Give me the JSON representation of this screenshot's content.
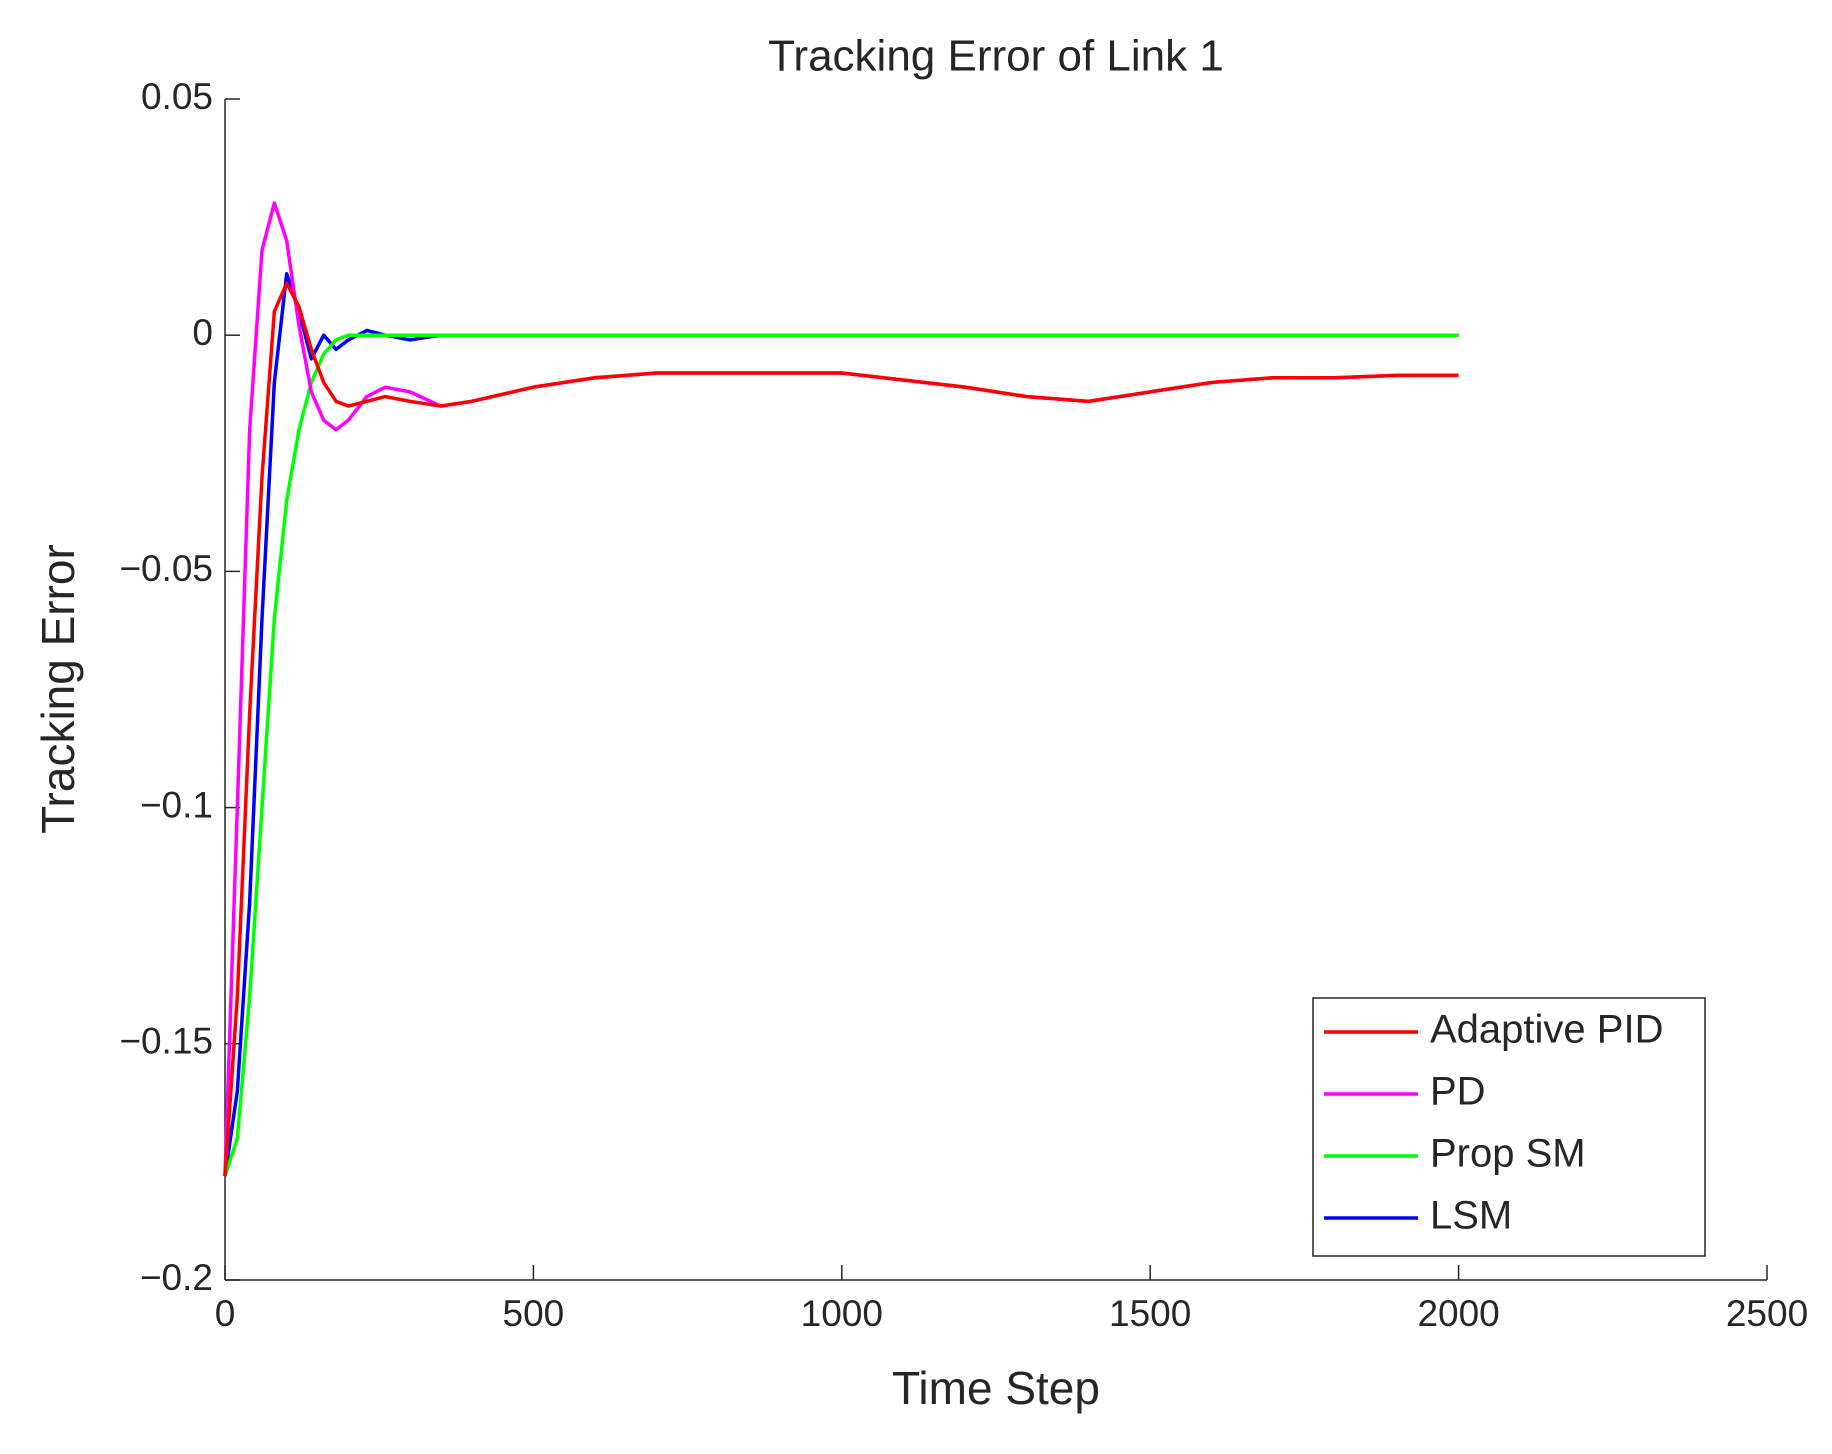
{
  "chart_data": {
    "type": "line",
    "title": "Tracking Error of Link 1",
    "xlabel": "Time Step",
    "ylabel": "Tracking Error",
    "x": [
      0,
      20,
      40,
      60,
      80,
      100,
      120,
      140,
      160,
      180,
      200,
      230,
      260,
      300,
      350,
      400,
      500,
      600,
      700,
      800,
      1000,
      1200,
      1300,
      1400,
      1500,
      1600,
      1700,
      1800,
      1900,
      2000
    ],
    "series": [
      {
        "name": "Adaptive PID",
        "color": "#ff0000",
        "values": [
          -0.178,
          -0.14,
          -0.08,
          -0.03,
          0.005,
          0.011,
          0.006,
          -0.003,
          -0.01,
          -0.014,
          -0.015,
          -0.014,
          -0.013,
          -0.014,
          -0.015,
          -0.014,
          -0.011,
          -0.009,
          -0.008,
          -0.008,
          -0.008,
          -0.011,
          -0.013,
          -0.014,
          -0.012,
          -0.01,
          -0.009,
          -0.009,
          -0.0085,
          -0.0085
        ]
      },
      {
        "name": "PD",
        "color": "#ff00ff",
        "values": [
          -0.178,
          -0.1,
          -0.02,
          0.018,
          0.028,
          0.02,
          0.002,
          -0.012,
          -0.018,
          -0.02,
          -0.018,
          -0.013,
          -0.011,
          -0.012,
          -0.015,
          -0.014,
          -0.011,
          -0.009,
          -0.008,
          -0.008,
          -0.008,
          -0.011,
          -0.013,
          -0.014,
          -0.012,
          -0.01,
          -0.009,
          -0.009,
          -0.0085,
          -0.0085
        ]
      },
      {
        "name": "Prop SM",
        "color": "#00ff00",
        "values": [
          -0.178,
          -0.17,
          -0.14,
          -0.1,
          -0.06,
          -0.035,
          -0.02,
          -0.01,
          -0.004,
          -0.001,
          0,
          0,
          0,
          0,
          0,
          0,
          0,
          0,
          0,
          0,
          0,
          0,
          0,
          0,
          0,
          0,
          0,
          0,
          0,
          0
        ]
      },
      {
        "name": "LSM",
        "color": "#0000ff",
        "values": [
          -0.178,
          -0.16,
          -0.12,
          -0.06,
          -0.01,
          0.013,
          0.005,
          -0.005,
          0,
          -0.003,
          -0.001,
          0.001,
          0,
          -0.001,
          0,
          0,
          0,
          0,
          0,
          0,
          0,
          0,
          0,
          0,
          0,
          0,
          0,
          0,
          0,
          0
        ]
      }
    ],
    "xlim": [
      0,
      2500
    ],
    "xticks": [
      0,
      500,
      1000,
      1500,
      2000,
      2500
    ],
    "ylim": [
      -0.2,
      0.05
    ],
    "yticks": [
      {
        "value": -0.2,
        "label": "−0.2"
      },
      {
        "value": -0.15,
        "label": "−0.15"
      },
      {
        "value": -0.1,
        "label": "−0.1"
      },
      {
        "value": -0.05,
        "label": "−0.05"
      },
      0,
      0.05
    ],
    "legend": "southeast"
  }
}
